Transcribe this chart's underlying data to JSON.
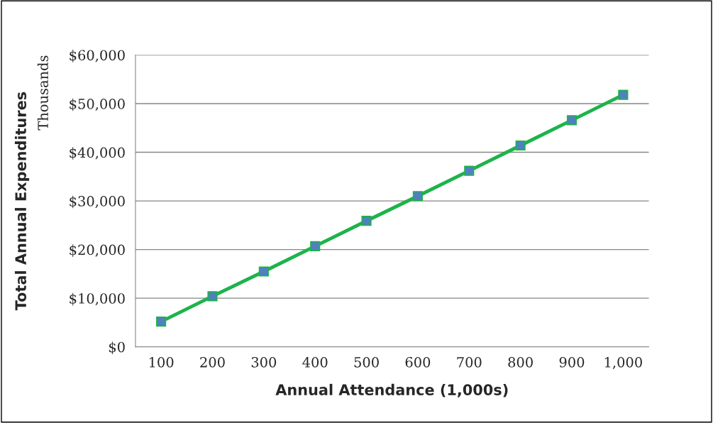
{
  "chart_data": {
    "type": "line",
    "xlabel": "Annual Attendance (1,000s)",
    "ylabel": "Total Annual Expenditures",
    "annotations": [
      "Thousands"
    ],
    "categories": [
      "100",
      "200",
      "300",
      "400",
      "500",
      "600",
      "700",
      "800",
      "900",
      "1,000"
    ],
    "series": [
      {
        "color": "#1db34b",
        "values": [
          5200,
          10400,
          15500,
          20700,
          25900,
          31000,
          36200,
          41400,
          46600,
          51800
        ]
      }
    ],
    "ylim": [
      0,
      60000
    ],
    "yticks": [
      {
        "value": 0,
        "label": "$0"
      },
      {
        "value": 10000,
        "label": "$10,000"
      },
      {
        "value": 20000,
        "label": "$20,000"
      },
      {
        "value": 30000,
        "label": "$30,000"
      },
      {
        "value": 40000,
        "label": "$40,000"
      },
      {
        "value": 50000,
        "label": "$50,000"
      },
      {
        "value": 60000,
        "label": "$60,000"
      }
    ],
    "grid": "y",
    "legend": false,
    "marker": "square",
    "line_style": "solid"
  }
}
